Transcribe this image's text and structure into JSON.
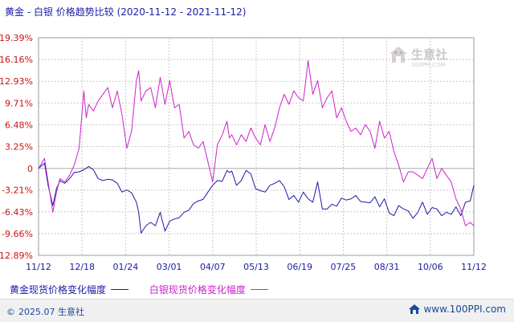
{
  "title": {
    "main": "黄金 - 白银  价格趋势比较",
    "range": "(2020-11-12 - 2021-11-12)"
  },
  "watermark": {
    "name": "生意社",
    "url": "100PPI.COM"
  },
  "legend": [
    {
      "label": "黄金现货价格变化幅度",
      "color": "#1a1aa6"
    },
    {
      "label": "白银现货价格变化幅度",
      "color": "#cc22cc"
    }
  ],
  "footer": {
    "copyright_symbol": "©",
    "copyright": "2025.07 生意社",
    "site": "www.100PPI.com"
  },
  "chart_data": {
    "type": "line",
    "y_ticks": [
      "19.39%",
      "16.16%",
      "12.93%",
      "9.71%",
      "6.48%",
      "3.25%",
      "0",
      "-3.21%",
      "-6.43%",
      "-9.66%",
      "-12.89%"
    ],
    "y_tick_values": [
      19.39,
      16.16,
      12.93,
      9.71,
      6.48,
      3.25,
      0,
      -3.21,
      -6.43,
      -9.66,
      -12.89
    ],
    "ylim": [
      -12.89,
      19.39
    ],
    "x_ticks": [
      "11/12",
      "12/18",
      "01/24",
      "03/01",
      "04/07",
      "05/13",
      "06/19",
      "07/25",
      "08/31",
      "10/06",
      "11/12"
    ],
    "xlim": [
      0,
      365
    ],
    "grid": true,
    "colors": {
      "gold": "#1a1aa6",
      "silver": "#cc22cc",
      "grid": "#c8c8c8",
      "zero_line": "#aaaaaa"
    },
    "series": [
      {
        "name": "黄金现货价格变化幅度",
        "color": "#1a1aa6",
        "x": [
          0,
          5,
          8,
          12,
          15,
          18,
          22,
          26,
          30,
          34,
          38,
          42,
          46,
          50,
          54,
          58,
          62,
          66,
          70,
          74,
          78,
          82,
          84,
          86,
          90,
          94,
          98,
          102,
          106,
          110,
          114,
          118,
          122,
          126,
          130,
          134,
          138,
          142,
          146,
          150,
          154,
          158,
          160,
          162,
          166,
          170,
          174,
          178,
          182,
          186,
          190,
          194,
          198,
          202,
          206,
          210,
          214,
          218,
          222,
          226,
          230,
          234,
          238,
          242,
          246,
          250,
          254,
          258,
          262,
          266,
          270,
          274,
          278,
          282,
          286,
          290,
          294,
          298,
          302,
          306,
          310,
          314,
          318,
          322,
          326,
          330,
          334,
          338,
          342,
          346,
          350,
          354,
          358,
          362,
          365
        ],
        "y": [
          0.0,
          0.8,
          -2.5,
          -5.5,
          -3.0,
          -1.8,
          -2.2,
          -1.5,
          -0.6,
          -0.5,
          -0.2,
          0.3,
          -0.2,
          -1.5,
          -1.8,
          -1.6,
          -1.7,
          -2.2,
          -3.5,
          -3.2,
          -3.6,
          -5.0,
          -6.5,
          -9.6,
          -8.5,
          -8.0,
          -8.5,
          -6.5,
          -9.3,
          -7.8,
          -7.5,
          -7.3,
          -6.5,
          -6.2,
          -5.2,
          -4.8,
          -4.6,
          -3.5,
          -2.5,
          -1.8,
          -1.9,
          -0.3,
          -0.6,
          -0.4,
          -2.5,
          -1.8,
          -0.3,
          -0.8,
          -3.0,
          -3.3,
          -3.5,
          -2.5,
          -2.2,
          -1.8,
          -2.7,
          -4.6,
          -4.0,
          -5.0,
          -3.5,
          -4.5,
          -5.0,
          -2.0,
          -6.0,
          -6.0,
          -5.3,
          -5.6,
          -4.4,
          -4.7,
          -4.5,
          -4.0,
          -4.9,
          -5.0,
          -5.1,
          -4.2,
          -5.7,
          -4.5,
          -6.6,
          -7.0,
          -5.5,
          -6.0,
          -6.3,
          -7.4,
          -6.5,
          -5.0,
          -6.8,
          -5.8,
          -6.0,
          -7.0,
          -6.5,
          -6.8,
          -5.7,
          -7.0,
          -5.0,
          -4.8,
          -2.5
        ]
      },
      {
        "name": "白银现货价格变化幅度",
        "color": "#cc22cc",
        "x": [
          0,
          5,
          8,
          12,
          15,
          18,
          22,
          26,
          30,
          34,
          38,
          40,
          42,
          46,
          50,
          54,
          58,
          62,
          66,
          70,
          74,
          78,
          82,
          84,
          86,
          90,
          94,
          98,
          102,
          106,
          110,
          114,
          118,
          122,
          126,
          130,
          134,
          138,
          142,
          146,
          150,
          154,
          158,
          160,
          162,
          166,
          170,
          174,
          178,
          182,
          186,
          190,
          194,
          198,
          202,
          206,
          210,
          214,
          218,
          222,
          226,
          230,
          234,
          238,
          242,
          246,
          250,
          254,
          258,
          262,
          266,
          270,
          274,
          278,
          282,
          286,
          290,
          294,
          298,
          302,
          306,
          310,
          314,
          318,
          322,
          326,
          330,
          334,
          338,
          342,
          346,
          350,
          354,
          358,
          362,
          365
        ],
        "y": [
          0.0,
          1.5,
          -2.0,
          -6.5,
          -3.5,
          -1.5,
          -2.0,
          -1.0,
          0.5,
          3.0,
          11.5,
          7.5,
          9.5,
          8.5,
          10.0,
          11.0,
          12.0,
          9.0,
          11.5,
          8.0,
          3.0,
          5.5,
          13.0,
          14.5,
          10.0,
          11.5,
          12.0,
          9.0,
          13.5,
          9.5,
          13.0,
          9.0,
          9.5,
          4.5,
          5.5,
          3.5,
          3.0,
          4.0,
          1.0,
          -2.0,
          3.5,
          5.0,
          7.0,
          4.5,
          5.0,
          3.5,
          5.0,
          4.0,
          6.0,
          4.5,
          3.5,
          6.5,
          4.0,
          6.0,
          9.0,
          11.0,
          9.5,
          11.5,
          10.5,
          10.0,
          16.0,
          11.0,
          13.0,
          9.0,
          10.5,
          11.5,
          7.5,
          9.0,
          7.0,
          5.5,
          6.0,
          5.0,
          6.5,
          5.5,
          3.0,
          7.0,
          4.5,
          5.5,
          2.5,
          0.5,
          -2.0,
          -0.5,
          -0.5,
          -1.0,
          -1.5,
          0.0,
          1.5,
          -1.5,
          0.0,
          -1.0,
          -2.0,
          -4.5,
          -6.0,
          -8.5,
          -8.0,
          -8.5
        ]
      }
    ]
  }
}
